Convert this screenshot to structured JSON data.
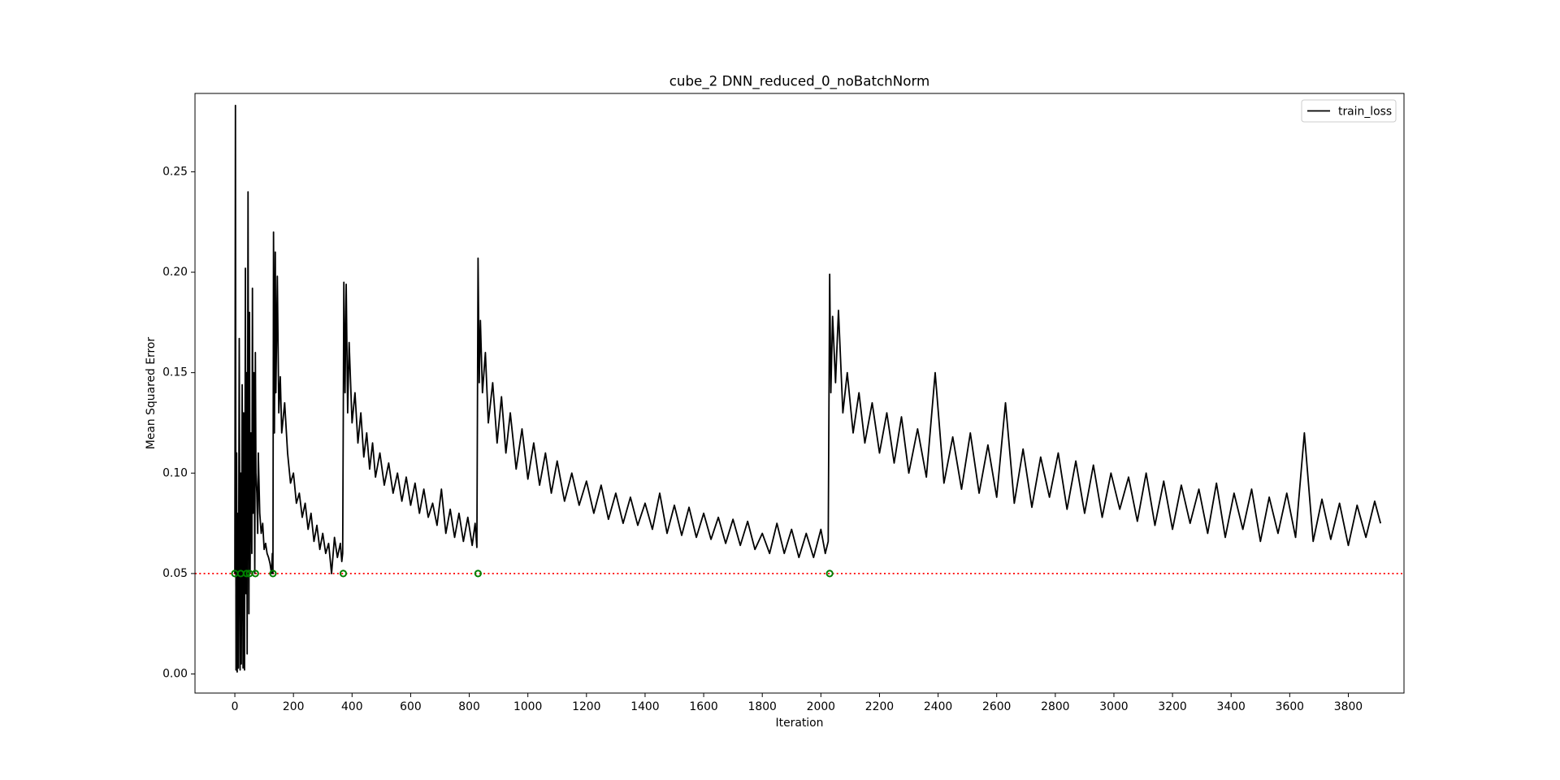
{
  "chart_data": {
    "type": "line",
    "title": "cube_2 DNN_reduced_0_noBatchNorm",
    "x_label": "Iteration",
    "y_label": "Mean Squared Error",
    "xlim": [
      -136,
      3990
    ],
    "ylim": [
      -0.0095,
      0.289
    ],
    "xticks": [
      0,
      200,
      400,
      600,
      800,
      1000,
      1200,
      1400,
      1600,
      1800,
      2000,
      2200,
      2400,
      2600,
      2800,
      3000,
      3200,
      3400,
      3600,
      3800
    ],
    "yticks": [
      {
        "value": 0,
        "label": "0.00"
      },
      0.05,
      {
        "value": 0.1,
        "label": "0.10"
      },
      0.15,
      {
        "value": 0.2,
        "label": "0.20"
      },
      0.25
    ],
    "legend_position": "upper right",
    "series": [
      {
        "name": "train_loss",
        "color": "#000000",
        "x": [
          0,
          2,
          4,
          6,
          8,
          10,
          12,
          15,
          18,
          20,
          22,
          25,
          28,
          30,
          33,
          36,
          38,
          40,
          42,
          45,
          48,
          50,
          52,
          55,
          58,
          60,
          62,
          65,
          68,
          70,
          72,
          75,
          78,
          80,
          85,
          90,
          95,
          100,
          105,
          110,
          115,
          120,
          125,
          128,
          130,
          132,
          135,
          138,
          140,
          145,
          150,
          155,
          160,
          170,
          180,
          190,
          200,
          210,
          220,
          230,
          240,
          250,
          260,
          270,
          280,
          290,
          300,
          310,
          320,
          330,
          340,
          350,
          360,
          365,
          368,
          372,
          376,
          380,
          385,
          390,
          400,
          410,
          420,
          430,
          440,
          450,
          460,
          470,
          480,
          495,
          510,
          525,
          540,
          555,
          570,
          585,
          600,
          615,
          630,
          645,
          660,
          675,
          690,
          705,
          720,
          735,
          750,
          765,
          780,
          795,
          810,
          820,
          826,
          830,
          834,
          838,
          845,
          855,
          865,
          880,
          895,
          910,
          925,
          940,
          960,
          980,
          1000,
          1020,
          1040,
          1060,
          1080,
          1100,
          1125,
          1150,
          1175,
          1200,
          1225,
          1250,
          1275,
          1300,
          1325,
          1350,
          1375,
          1400,
          1425,
          1450,
          1475,
          1500,
          1525,
          1550,
          1575,
          1600,
          1625,
          1650,
          1675,
          1700,
          1725,
          1750,
          1775,
          1800,
          1825,
          1850,
          1875,
          1900,
          1925,
          1950,
          1975,
          2000,
          2015,
          2025,
          2030,
          2034,
          2040,
          2050,
          2060,
          2075,
          2090,
          2110,
          2130,
          2150,
          2175,
          2200,
          2225,
          2250,
          2275,
          2300,
          2330,
          2360,
          2390,
          2420,
          2450,
          2480,
          2510,
          2540,
          2570,
          2600,
          2630,
          2660,
          2690,
          2720,
          2750,
          2780,
          2810,
          2840,
          2870,
          2900,
          2930,
          2960,
          2990,
          3020,
          3050,
          3080,
          3110,
          3140,
          3170,
          3200,
          3230,
          3260,
          3290,
          3320,
          3350,
          3380,
          3410,
          3440,
          3470,
          3500,
          3530,
          3560,
          3590,
          3620,
          3650,
          3680,
          3710,
          3740,
          3770,
          3800,
          3830,
          3860,
          3890,
          3910
        ],
        "values": [
          0.05,
          0.283,
          0.002,
          0.11,
          0.001,
          0.08,
          0.003,
          0.167,
          0.002,
          0.1,
          0.005,
          0.144,
          0.003,
          0.13,
          0.002,
          0.202,
          0.04,
          0.15,
          0.01,
          0.24,
          0.03,
          0.18,
          0.05,
          0.12,
          0.06,
          0.192,
          0.08,
          0.15,
          0.05,
          0.16,
          0.1,
          0.09,
          0.07,
          0.11,
          0.08,
          0.07,
          0.075,
          0.062,
          0.065,
          0.06,
          0.058,
          0.055,
          0.05,
          0.06,
          0.05,
          0.22,
          0.12,
          0.21,
          0.14,
          0.198,
          0.13,
          0.148,
          0.12,
          0.135,
          0.11,
          0.095,
          0.1,
          0.085,
          0.09,
          0.078,
          0.085,
          0.072,
          0.08,
          0.066,
          0.074,
          0.062,
          0.07,
          0.06,
          0.065,
          0.05,
          0.068,
          0.058,
          0.065,
          0.056,
          0.06,
          0.195,
          0.14,
          0.194,
          0.13,
          0.165,
          0.125,
          0.14,
          0.115,
          0.13,
          0.108,
          0.12,
          0.102,
          0.115,
          0.098,
          0.11,
          0.094,
          0.105,
          0.09,
          0.1,
          0.086,
          0.098,
          0.084,
          0.095,
          0.08,
          0.092,
          0.078,
          0.085,
          0.074,
          0.092,
          0.07,
          0.082,
          0.068,
          0.08,
          0.066,
          0.078,
          0.064,
          0.075,
          0.063,
          0.207,
          0.145,
          0.176,
          0.14,
          0.16,
          0.125,
          0.145,
          0.115,
          0.138,
          0.11,
          0.13,
          0.102,
          0.122,
          0.097,
          0.115,
          0.094,
          0.11,
          0.09,
          0.106,
          0.086,
          0.1,
          0.084,
          0.096,
          0.08,
          0.094,
          0.077,
          0.09,
          0.075,
          0.088,
          0.074,
          0.085,
          0.072,
          0.09,
          0.07,
          0.084,
          0.069,
          0.083,
          0.068,
          0.08,
          0.067,
          0.078,
          0.065,
          0.077,
          0.064,
          0.076,
          0.062,
          0.07,
          0.06,
          0.075,
          0.06,
          0.072,
          0.058,
          0.07,
          0.058,
          0.072,
          0.06,
          0.066,
          0.199,
          0.14,
          0.178,
          0.145,
          0.181,
          0.13,
          0.15,
          0.12,
          0.14,
          0.115,
          0.135,
          0.11,
          0.13,
          0.105,
          0.128,
          0.1,
          0.122,
          0.098,
          0.15,
          0.095,
          0.118,
          0.092,
          0.12,
          0.09,
          0.114,
          0.088,
          0.135,
          0.085,
          0.112,
          0.083,
          0.108,
          0.088,
          0.11,
          0.082,
          0.106,
          0.08,
          0.104,
          0.078,
          0.1,
          0.082,
          0.098,
          0.076,
          0.1,
          0.074,
          0.096,
          0.072,
          0.094,
          0.075,
          0.092,
          0.07,
          0.095,
          0.068,
          0.09,
          0.072,
          0.092,
          0.066,
          0.088,
          0.07,
          0.09,
          0.068,
          0.12,
          0.066,
          0.087,
          0.067,
          0.085,
          0.064,
          0.084,
          0.068,
          0.086,
          0.075
        ]
      }
    ],
    "points": {
      "color": "#008000",
      "x": [
        0,
        20,
        40,
        50,
        70,
        130,
        370,
        830,
        2030
      ],
      "values": [
        0.05,
        0.05,
        0.05,
        0.05,
        0.05,
        0.05,
        0.05,
        0.05,
        0.05
      ]
    },
    "threshold": {
      "value": 0.05,
      "color": "#ff0000"
    }
  }
}
